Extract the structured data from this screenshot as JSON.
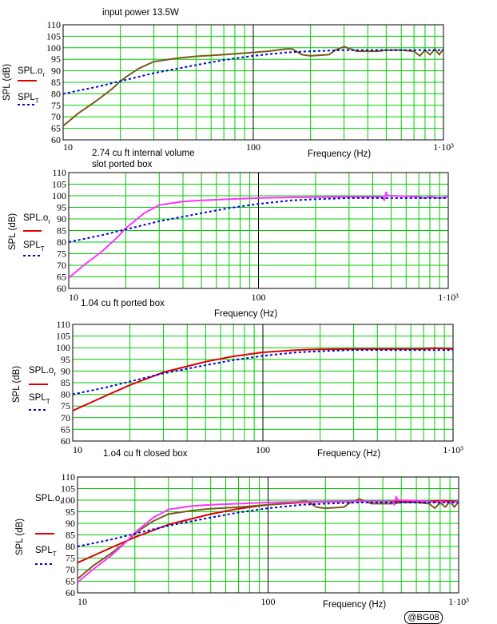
{
  "watermark": "@BG08",
  "colors": {
    "grid": "#00cc00",
    "red": "#e00000",
    "olive": "#7a5a1a",
    "magenta": "#ff33ff",
    "blue": "#0000dd"
  },
  "chart_data": [
    {
      "type": "line",
      "annotations": [
        "input power 13.5W",
        "2.74 cu ft internal volume",
        "slot ported box"
      ],
      "xlabel": "Frequency (Hz)",
      "ylabel": "SPL (dB)",
      "xscale": "log",
      "xlim": [
        10,
        1000
      ],
      "ylim": [
        60,
        110
      ],
      "xticks": [
        "10",
        "100",
        "1·10³"
      ],
      "yticks": [
        "60",
        "65",
        "70",
        "75",
        "80",
        "85",
        "90",
        "95",
        "100",
        "105",
        "110"
      ],
      "legend": [
        "SPL.o_r",
        "SPL_T"
      ],
      "series": [
        {
          "name": "SPL.o_r",
          "color": "olive",
          "x": [
            10,
            12,
            15,
            18,
            20,
            22,
            25,
            30,
            40,
            50,
            70,
            100,
            120,
            150,
            160,
            180,
            200,
            250,
            270,
            300,
            350,
            400,
            450,
            500,
            600,
            700,
            750,
            800,
            850,
            900,
            950,
            1000
          ],
          "y": [
            66,
            71.5,
            77,
            82,
            85.5,
            88,
            91,
            94,
            95.5,
            96.3,
            97,
            98,
            98.5,
            99.5,
            99.5,
            97,
            96.5,
            97,
            99,
            100.5,
            98.5,
            98.5,
            98.5,
            99,
            99,
            98.5,
            96.5,
            99,
            97,
            99.5,
            97,
            99.5
          ]
        },
        {
          "name": "SPL_T",
          "color": "blue",
          "x": [
            10,
            15,
            20,
            30,
            50,
            70,
            100,
            150,
            200,
            300,
            400,
            500,
            700,
            1000
          ],
          "y": [
            80,
            83,
            85.5,
            89,
            92.5,
            94.7,
            96.5,
            98,
            98.5,
            99,
            99,
            99,
            99,
            99
          ]
        }
      ]
    },
    {
      "type": "line",
      "annotations": [
        "1.04 cu ft ported box"
      ],
      "xlabel": "Frequency (Hz)",
      "ylabel": "SPL (dB)",
      "xscale": "log",
      "xlim": [
        10,
        1000
      ],
      "ylim": [
        60,
        110
      ],
      "xticks": [
        "10",
        "100",
        "1·10³"
      ],
      "yticks": [
        "60",
        "65",
        "70",
        "75",
        "80",
        "85",
        "90",
        "95",
        "100",
        "105",
        "110"
      ],
      "legend": [
        "SPL.o_r",
        "SPL_T"
      ],
      "series": [
        {
          "name": "SPL.o_r",
          "color": "magenta",
          "x": [
            10,
            12,
            15,
            18,
            20,
            25,
            30,
            40,
            50,
            70,
            100,
            150,
            200,
            300,
            400,
            450,
            460,
            470,
            480,
            500,
            600,
            700,
            750,
            800,
            900,
            1000
          ],
          "y": [
            64.5,
            70,
            76,
            82,
            86,
            92.5,
            96,
            97.5,
            98,
            98.5,
            99,
            99.3,
            99.4,
            99.5,
            99.5,
            99.5,
            98,
            101.5,
            100,
            100,
            99.8,
            99.5,
            99,
            99.5,
            99,
            99.5
          ]
        },
        {
          "name": "SPL_T",
          "color": "blue",
          "x": [
            10,
            15,
            20,
            30,
            50,
            70,
            100,
            150,
            200,
            300,
            400,
            500,
            700,
            1000
          ],
          "y": [
            80,
            83,
            85.5,
            89,
            92.5,
            94.7,
            96.5,
            98,
            98.5,
            99,
            99,
            99,
            99,
            99
          ]
        }
      ]
    },
    {
      "type": "line",
      "annotations": [
        "1.o4 cu ft closed box"
      ],
      "xlabel": "Frequency (Hz)",
      "ylabel": "SPL (dB)",
      "xscale": "log",
      "xlim": [
        10,
        1000
      ],
      "ylim": [
        60,
        110
      ],
      "xticks": [
        "10",
        "100",
        "1·10³"
      ],
      "yticks": [
        "60",
        "65",
        "70",
        "75",
        "80",
        "85",
        "90",
        "95",
        "100",
        "105",
        "110"
      ],
      "legend": [
        "SPL.o_r",
        "SPL_T"
      ],
      "series": [
        {
          "name": "SPL.o_r",
          "color": "red",
          "x": [
            10,
            15,
            20,
            30,
            50,
            70,
            100,
            150,
            200,
            300,
            500,
            700,
            800,
            1000
          ],
          "y": [
            73,
            79.5,
            84,
            89.5,
            94,
            96.3,
            98,
            99,
            99.3,
            99.5,
            99.5,
            99.5,
            99.8,
            99.5
          ]
        },
        {
          "name": "SPL_T",
          "color": "blue",
          "x": [
            10,
            15,
            20,
            30,
            50,
            70,
            100,
            150,
            200,
            300,
            400,
            500,
            700,
            1000
          ],
          "y": [
            80,
            83,
            85.5,
            89,
            92.5,
            94.7,
            96.5,
            98,
            98.5,
            99,
            99,
            99,
            99,
            99
          ]
        }
      ]
    },
    {
      "type": "line",
      "xlabel": "Frequency (Hz)",
      "ylabel": "SPL (dB)",
      "xscale": "log",
      "xlim": [
        10,
        1000
      ],
      "ylim": [
        60,
        110
      ],
      "xticks": [
        "10",
        "100",
        "1·10³"
      ],
      "yticks": [
        "60",
        "65",
        "70",
        "75",
        "80",
        "85",
        "90",
        "95",
        "100",
        "105",
        "110"
      ],
      "legend": [
        "SPL.o_r",
        "SPL_T"
      ],
      "series": [
        {
          "name": "SPL.o_r",
          "color": "red",
          "x": [
            10,
            15,
            20,
            30,
            50,
            70,
            100,
            150,
            200,
            300,
            500,
            700,
            800,
            1000
          ],
          "y": [
            73,
            79.5,
            84,
            89.5,
            94,
            96.3,
            98,
            99,
            99.3,
            99.5,
            99.5,
            99.5,
            99.8,
            99.5
          ]
        },
        {
          "name": "SPL.o_r",
          "color": "olive",
          "x": [
            10,
            12,
            15,
            18,
            20,
            22,
            25,
            30,
            40,
            50,
            70,
            100,
            120,
            150,
            160,
            180,
            200,
            250,
            270,
            300,
            350,
            400,
            450,
            500,
            600,
            700,
            750,
            800,
            850,
            900,
            950,
            1000
          ],
          "y": [
            66,
            71.5,
            77,
            82,
            85.5,
            88,
            91,
            94,
            95.5,
            96.3,
            97,
            98,
            98.5,
            99.5,
            99.5,
            97,
            96.5,
            97,
            99,
            100.5,
            98.5,
            98.5,
            98.5,
            99,
            99,
            98.5,
            96.5,
            99,
            97,
            99.5,
            97,
            99.5
          ]
        },
        {
          "name": "SPL.o_r",
          "color": "magenta",
          "x": [
            10,
            12,
            15,
            18,
            20,
            25,
            30,
            40,
            50,
            70,
            100,
            150,
            200,
            300,
            400,
            450,
            460,
            470,
            480,
            500,
            600,
            700,
            750,
            800,
            900,
            1000
          ],
          "y": [
            64.5,
            70,
            76,
            82,
            86,
            92.5,
            96,
            97.5,
            98,
            98.5,
            99,
            99.3,
            99.4,
            99.5,
            99.5,
            99.5,
            98,
            101.5,
            100,
            100,
            99.8,
            99.5,
            99,
            99.5,
            99,
            99.5
          ]
        },
        {
          "name": "SPL_T",
          "color": "blue",
          "x": [
            10,
            15,
            20,
            30,
            50,
            70,
            100,
            150,
            200,
            300,
            400,
            500,
            700,
            1000
          ],
          "y": [
            80,
            83,
            85.5,
            89,
            92.5,
            94.7,
            96.5,
            98,
            98.5,
            99,
            99,
            99,
            99,
            99
          ]
        }
      ]
    }
  ]
}
